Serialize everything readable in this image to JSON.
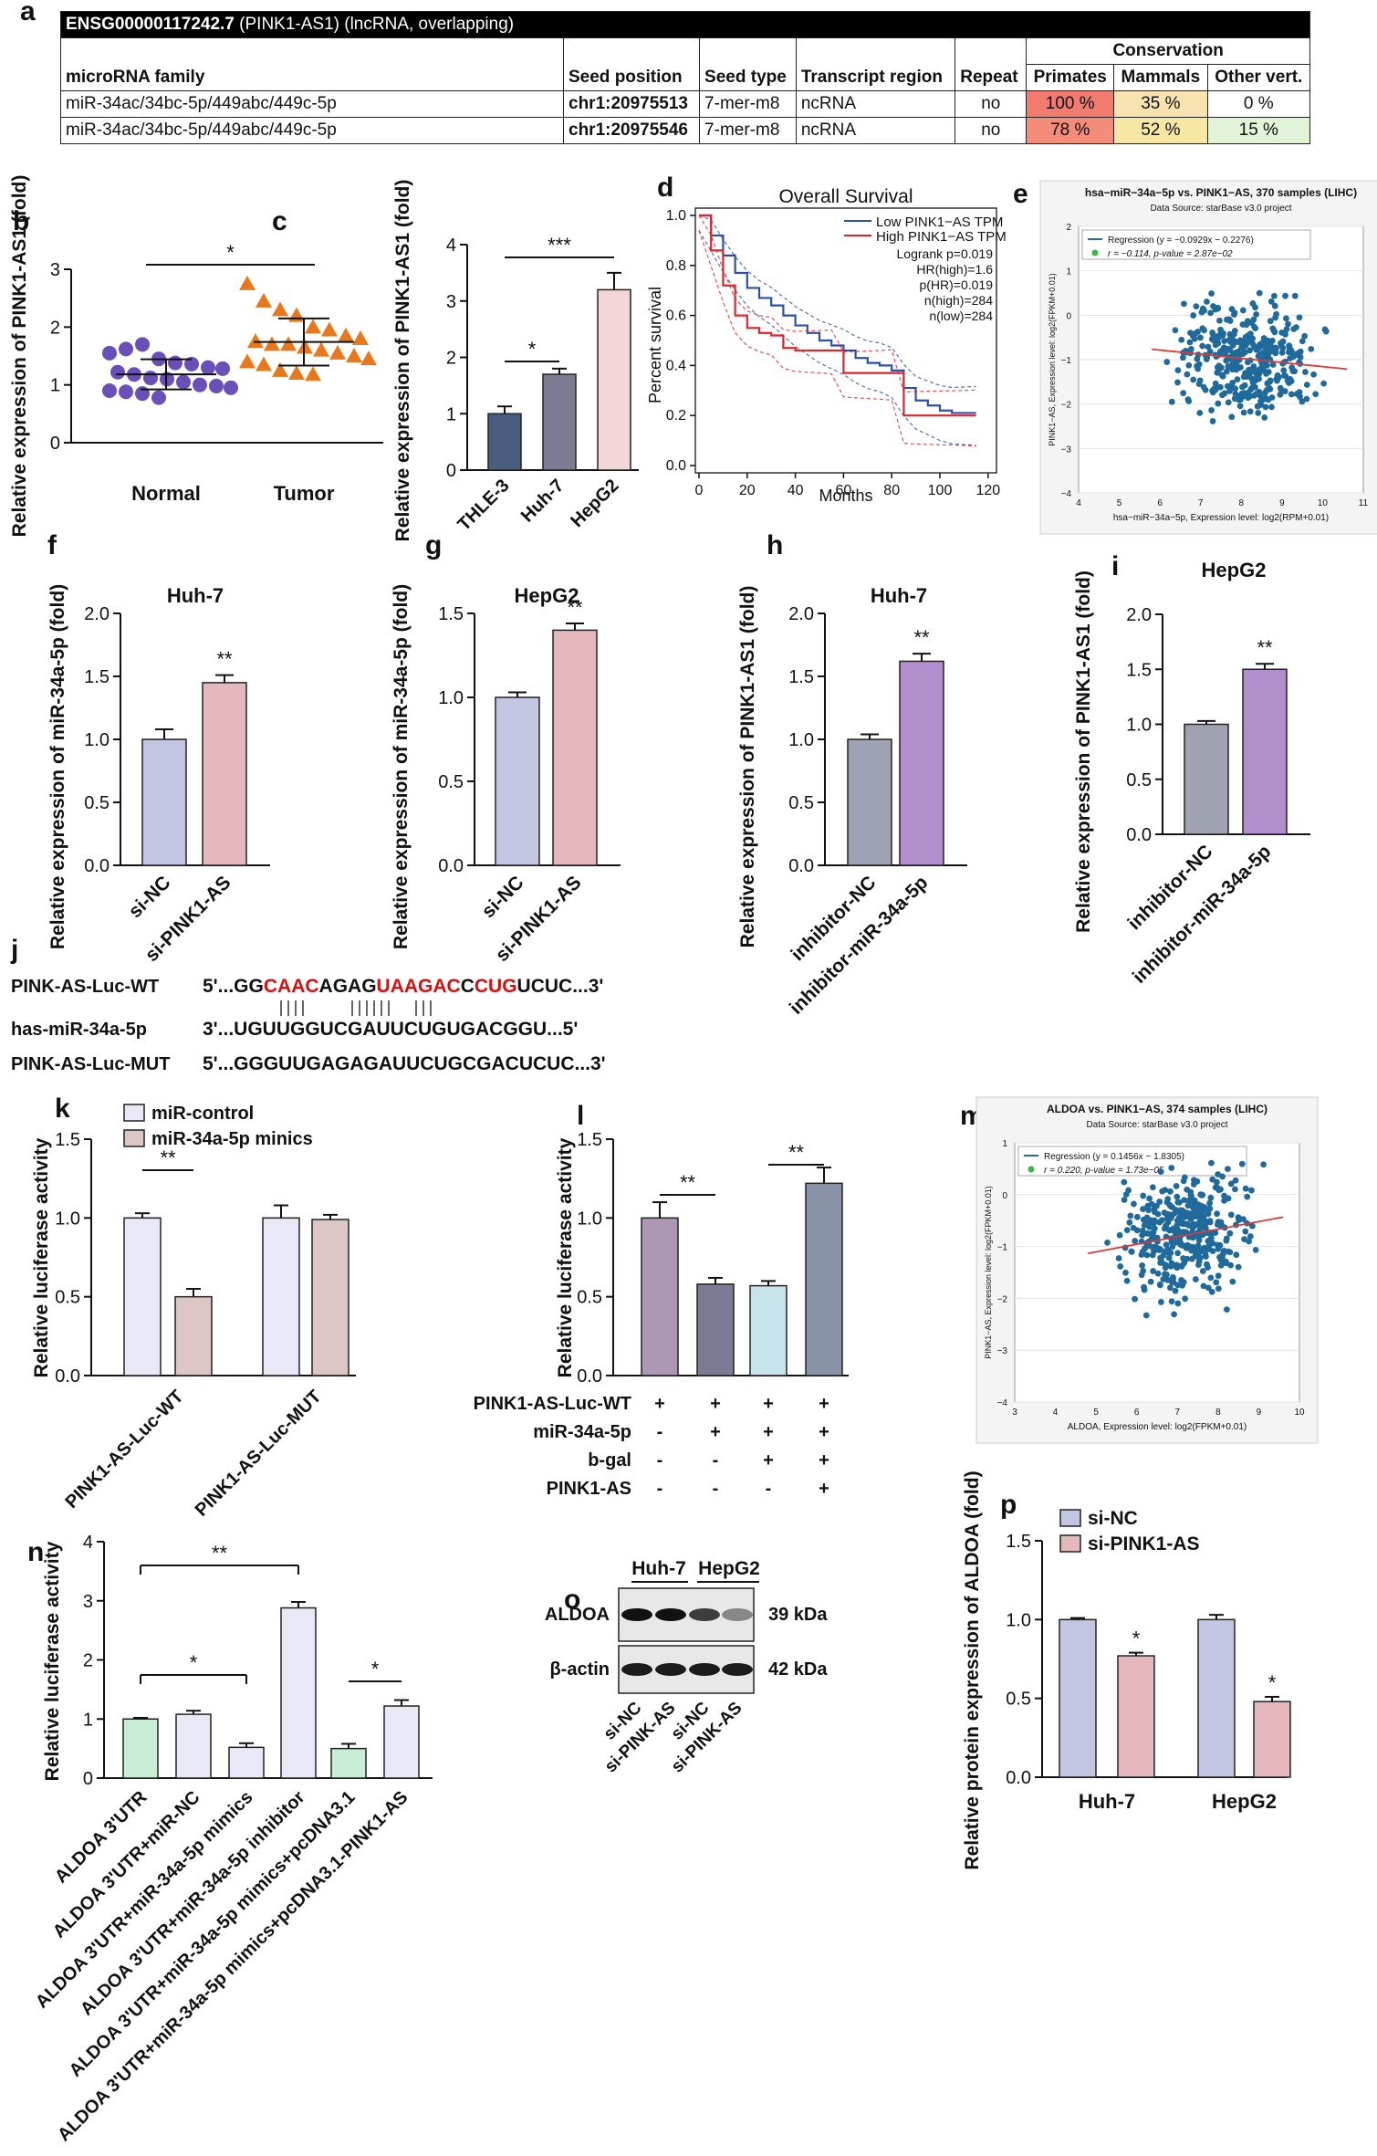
{
  "colors": {
    "purple": "#6a4fb8",
    "orange": "#e8781c",
    "navy": "#4a5d7e",
    "slate": "#7b7b96",
    "pink": "#f4d6d8",
    "lavender": "#c3c6e3",
    "rosy": "#e5b8bd",
    "gray": "#9ea2b3",
    "violet": "#b28fcc",
    "mauve": "#ad97b5",
    "lightblue": "#c7e4ea",
    "slateblue": "#8893a8",
    "beige": "#dcc6c6",
    "lightlav": "#e8e8f6",
    "mint": "#c9eed6",
    "red": "#d90f0f"
  },
  "panel_letters": [
    "a",
    "b",
    "c",
    "d",
    "e",
    "f",
    "g",
    "h",
    "i",
    "j",
    "k",
    "l",
    "m",
    "n",
    "o",
    "p"
  ],
  "table_a": {
    "title_id": "ENSG00000117242.7",
    "title_rest": "(PINK1-AS1) (lncRNA, overlapping)",
    "h_family": "microRNA family",
    "h_seed_pos": "Seed position",
    "h_seed_type": "Seed type",
    "h_region": "Transcript region",
    "h_repeat": "Repeat",
    "h_cons": "Conservation",
    "h_primates": "Primates",
    "h_mammals": "Mammals",
    "h_other": "Other vert.",
    "rows": [
      {
        "family": "miR-34ac/34bc-5p/449abc/449c-5p",
        "pos": "chr1:20975513",
        "type": "7-mer-m8",
        "region": "ncRNA",
        "repeat": "no",
        "primates": "100 %",
        "mammals": "35 %",
        "other": "0 %",
        "primates_color": "#f07b6e",
        "mammals_color": "#f8e3b0",
        "other_color": "#ffffff"
      },
      {
        "family": "miR-34ac/34bc-5p/449abc/449c-5p",
        "pos": "chr1:20975546",
        "type": "7-mer-m8",
        "region": "ncRNA",
        "repeat": "no",
        "primates": "78 %",
        "mammals": "52 %",
        "other": "15 %",
        "primates_color": "#f48c7a",
        "mammals_color": "#f6e7a5",
        "other_color": "#e2f4d8"
      }
    ]
  },
  "chart_data": [
    {
      "panel": "b",
      "type": "scatter",
      "ylabel": "Relative expression of PINK1-AS1 (fold)",
      "yticks": [
        "0",
        "1",
        "2",
        "3"
      ],
      "ylim": [
        0,
        3
      ],
      "categories": [
        "Normal",
        "Tumor"
      ],
      "sig": "*",
      "series": [
        {
          "name": "Normal",
          "values": [
            1.55,
            1.62,
            1.7,
            1.45,
            1.38,
            1.36,
            1.3,
            1.28,
            1.22,
            1.18,
            1.12,
            1.1,
            1.05,
            1.0,
            0.98,
            0.95,
            0.9,
            0.88,
            0.85,
            0.78
          ]
        },
        {
          "name": "Tumor",
          "values": [
            2.75,
            2.45,
            2.3,
            2.2,
            2.0,
            1.95,
            1.85,
            1.8,
            1.75,
            1.7,
            1.7,
            1.65,
            1.6,
            1.55,
            1.5,
            1.45,
            1.4,
            1.35,
            1.25,
            1.2,
            1.18
          ]
        }
      ]
    },
    {
      "panel": "c",
      "type": "bar",
      "ylabel": "Relative expression of PINK1-AS1 (fold)",
      "yticks": [
        "0",
        "1",
        "2",
        "3",
        "4"
      ],
      "ylim": [
        0,
        4
      ],
      "categories": [
        "THLE-3",
        "Huh-7",
        "HepG2"
      ],
      "values": [
        1.0,
        1.7,
        3.2
      ],
      "errors": [
        0.13,
        0.1,
        0.3
      ],
      "sig": [
        "*",
        "***"
      ]
    },
    {
      "panel": "d",
      "type": "line",
      "title": "Overall Survival",
      "xlabel": "Months",
      "ylabel": "Percent survival",
      "xticks": [
        "0",
        "20",
        "40",
        "60",
        "80",
        "100",
        "120"
      ],
      "yticks": [
        "0.0",
        "0.2",
        "0.4",
        "0.6",
        "0.8",
        "1.0"
      ],
      "xlim": [
        0,
        125
      ],
      "ylim": [
        0,
        1
      ],
      "legend": [
        "Low PINK1−AS TPM",
        "High PINK1−AS TPM"
      ],
      "stats": [
        "Logrank p=0.019",
        "HR(high)=1.6",
        "p(HR)=0.019",
        "n(high)=284",
        "n(low)=284"
      ],
      "series": [
        {
          "name": "Low",
          "x": [
            0,
            5,
            10,
            15,
            20,
            25,
            30,
            35,
            40,
            45,
            50,
            55,
            60,
            65,
            70,
            75,
            80,
            85,
            90,
            95,
            100,
            105,
            110,
            115
          ],
          "y": [
            1.0,
            0.92,
            0.84,
            0.77,
            0.71,
            0.67,
            0.64,
            0.6,
            0.56,
            0.53,
            0.5,
            0.48,
            0.46,
            0.43,
            0.41,
            0.4,
            0.38,
            0.31,
            0.26,
            0.24,
            0.22,
            0.21,
            0.21,
            0.21
          ]
        },
        {
          "name": "High",
          "x": [
            0,
            5,
            10,
            15,
            20,
            25,
            30,
            35,
            40,
            45,
            50,
            55,
            60,
            65,
            70,
            75,
            80,
            85,
            90,
            100,
            110,
            115
          ],
          "y": [
            1.0,
            0.86,
            0.72,
            0.6,
            0.55,
            0.53,
            0.52,
            0.47,
            0.46,
            0.46,
            0.46,
            0.46,
            0.37,
            0.37,
            0.37,
            0.37,
            0.37,
            0.2,
            0.2,
            0.2,
            0.2,
            0.2
          ]
        }
      ]
    },
    {
      "panel": "e",
      "type": "scatter",
      "title": "hsa−miR−34a−5p vs. PINK1−AS, 370 samples (LIHC)",
      "subtitle": "Data Source: starBase v3.0 project",
      "regression": "Regression (y = −0.0929x − 0.2276)",
      "stat": "r = −0.114, p-value = 2.87e−02",
      "xlabel": "hsa−miR−34a−5p, Expression level: log2(RPM+0.01)",
      "ylabel": "PINK1−AS, Expression level: log2(FPKM+0.01)",
      "xticks": [
        "4",
        "5",
        "6",
        "7",
        "8",
        "9",
        "10",
        "11"
      ],
      "yticks": [
        "−4",
        "−3",
        "−2",
        "−1",
        "0",
        "1",
        "2"
      ],
      "xlim": [
        4,
        11
      ],
      "ylim": [
        -4,
        2
      ]
    },
    {
      "panel": "f",
      "type": "bar",
      "title": "Huh-7",
      "ylabel": "Relative expression of miR-34a-5p (fold)",
      "yticks": [
        "0.0",
        "0.5",
        "1.0",
        "1.5",
        "2.0"
      ],
      "ylim": [
        0,
        2
      ],
      "categories": [
        "si-NC",
        "si-PINK1-AS"
      ],
      "values": [
        1.0,
        1.45
      ],
      "errors": [
        0.08,
        0.06
      ],
      "sig": "**"
    },
    {
      "panel": "g",
      "type": "bar",
      "title": "HepG2",
      "ylabel": "Relative expression of miR-34a-5p (fold)",
      "yticks": [
        "0.0",
        "0.5",
        "1.0",
        "1.5"
      ],
      "ylim": [
        0,
        1.5
      ],
      "categories": [
        "si-NC",
        "si-PINK1-AS"
      ],
      "values": [
        1.0,
        1.4
      ],
      "errors": [
        0.03,
        0.04
      ],
      "sig": "**"
    },
    {
      "panel": "h",
      "type": "bar",
      "title": "Huh-7",
      "ylabel": "Relative expression of PINK1-AS1 (fold)",
      "yticks": [
        "0.0",
        "0.5",
        "1.0",
        "1.5",
        "2.0"
      ],
      "ylim": [
        0,
        2
      ],
      "categories": [
        "inhibitor-NC",
        "inhibitor-miR-34a-5p"
      ],
      "values": [
        1.0,
        1.62
      ],
      "errors": [
        0.04,
        0.06
      ],
      "sig": "**"
    },
    {
      "panel": "i",
      "type": "bar",
      "title": "HepG2",
      "ylabel": "Relative expression of PINK1-AS1 (fold)",
      "yticks": [
        "0.0",
        "0.5",
        "1.0",
        "1.5",
        "2.0"
      ],
      "ylim": [
        0,
        2
      ],
      "categories": [
        "inhibitor-NC",
        "inhibitor-miR-34a-5p"
      ],
      "values": [
        1.0,
        1.5
      ],
      "errors": [
        0.03,
        0.05
      ],
      "sig": "**"
    },
    {
      "panel": "k",
      "type": "bar",
      "ylabel": "Relative luciferase activity",
      "yticks": [
        "0.0",
        "0.5",
        "1.0",
        "1.5"
      ],
      "ylim": [
        0,
        1.5
      ],
      "categories": [
        "PINK1-AS-Luc-WT",
        "PINK1-AS-Luc-MUT"
      ],
      "legend": [
        "miR-control",
        "miR-34a-5p minics"
      ],
      "series": [
        {
          "name": "miR-control",
          "values": [
            1.0,
            1.0
          ],
          "errors": [
            0.03,
            0.08
          ]
        },
        {
          "name": "miR-34a-5p minics",
          "values": [
            0.5,
            0.99
          ],
          "errors": [
            0.05,
            0.03
          ]
        }
      ],
      "sig": "**"
    },
    {
      "panel": "l",
      "type": "bar",
      "ylabel": "Relative luciferase activity",
      "yticks": [
        "0.0",
        "0.5",
        "1.0",
        "1.5"
      ],
      "ylim": [
        0,
        1.5
      ],
      "values": [
        1.0,
        0.58,
        0.57,
        1.22
      ],
      "errors": [
        0.1,
        0.04,
        0.03,
        0.1
      ],
      "sig": [
        "**",
        "**"
      ],
      "row_labels": [
        "PINK1-AS-Luc-WT",
        "miR-34a-5p",
        "b-gal",
        "PINK1-AS"
      ],
      "signs": [
        [
          "+",
          "+",
          "+",
          "+"
        ],
        [
          "-",
          "+",
          "+",
          "+"
        ],
        [
          "-",
          "-",
          "+",
          "+"
        ],
        [
          "-",
          "-",
          "-",
          "+"
        ]
      ]
    },
    {
      "panel": "m",
      "type": "scatter",
      "title": "ALDOA vs. PINK1−AS, 374 samples (LIHC)",
      "subtitle": "Data Source: starBase v3.0 project",
      "regression": "Regression (y = 0.1456x − 1.8305)",
      "stat": "r = 0.220, p-value = 1.73e−05",
      "xlabel": "ALDOA, Expression level: log2(FPKM+0.01)",
      "ylabel": "PINK1−AS, Expression level: log2(FPKM+0.01)",
      "xticks": [
        "3",
        "4",
        "5",
        "6",
        "7",
        "8",
        "9",
        "10"
      ],
      "yticks": [
        "−4",
        "−3",
        "−2",
        "−1",
        "0",
        "1"
      ],
      "xlim": [
        3,
        10
      ],
      "ylim": [
        -4,
        1
      ]
    },
    {
      "panel": "n",
      "type": "bar",
      "ylabel": "Relative luciferase activity",
      "yticks": [
        "0",
        "1",
        "2",
        "3",
        "4"
      ],
      "ylim": [
        0,
        4
      ],
      "categories": [
        "ALDOA 3'UTR",
        "ALDOA 3'UTR+miR-NC",
        "ALDOA 3'UTR+miR-34a-5p mimics",
        "ALDOA 3'UTR+miR-34a-5p inhibitor",
        "ALDOA 3'UTR+miR-34a-5p mimics+pcDNA3.1",
        "ALDOA 3'UTR+miR-34a-5p mimics+pcDNA3.1-PINK1-AS"
      ],
      "values": [
        1.0,
        1.08,
        0.52,
        2.88,
        0.5,
        1.22
      ],
      "errors": [
        0.02,
        0.06,
        0.07,
        0.1,
        0.08,
        0.1
      ],
      "sig": [
        "**",
        "*",
        "*"
      ]
    },
    {
      "panel": "p",
      "type": "bar",
      "ylabel": "Relative protein expression of ALDOA (fold)",
      "yticks": [
        "0.0",
        "0.5",
        "1.0",
        "1.5"
      ],
      "ylim": [
        0,
        1.5
      ],
      "categories": [
        "Huh-7",
        "HepG2"
      ],
      "legend": [
        "si-NC",
        "si-PINK1-AS"
      ],
      "series": [
        {
          "name": "si-NC",
          "values": [
            1.0,
            1.0
          ],
          "errors": [
            0.01,
            0.03
          ]
        },
        {
          "name": "si-PINK1-AS",
          "values": [
            0.77,
            0.48
          ],
          "errors": [
            0.02,
            0.03
          ]
        }
      ],
      "sig": "*"
    }
  ],
  "panel_j": {
    "wt_label": "PINK-AS-Luc-WT",
    "mir_label": "has-miR-34a-5p",
    "mut_label": "PINK-AS-Luc-MUT",
    "wt_seq": [
      {
        "t": "5'...GG",
        "red": false
      },
      {
        "t": "CAAC",
        "red": true
      },
      {
        "t": "AGAG",
        "red": false
      },
      {
        "t": "UAAGAC",
        "red": true
      },
      {
        "t": "C",
        "red": false
      },
      {
        "t": "CUG",
        "red": true
      },
      {
        "t": "UCUC...3'",
        "red": false
      }
    ],
    "mir_seq": "3'...UGUUGGUCGAUUCUGUGACGGU...5'",
    "mut_seq": "5'...GGGUUGAGAGAUUCUGCGACUCUC...3'"
  },
  "panel_o": {
    "cell_lines": [
      "Huh-7",
      "HepG2"
    ],
    "proteins": [
      "ALDOA",
      "β-actin"
    ],
    "sizes": [
      "39 kDa",
      "42 kDa"
    ],
    "lanes": [
      "si-NC",
      "si-PINK-AS",
      "si-NC",
      "si-PINK-AS"
    ]
  }
}
